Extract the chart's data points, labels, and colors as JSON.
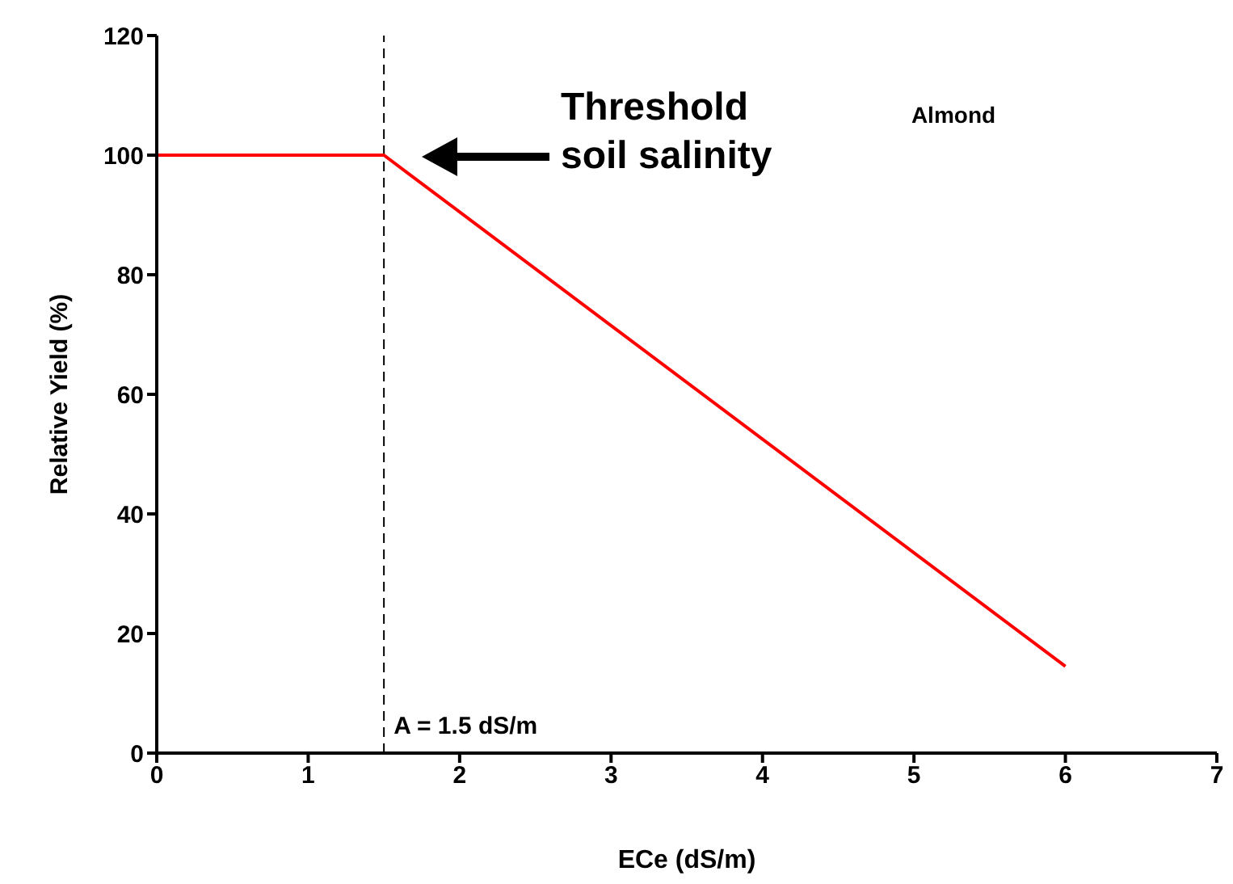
{
  "chart_data": {
    "type": "line",
    "xlabel": "ECe (dS/m)",
    "ylabel": "Relative Yield (%)",
    "x": [
      0,
      1.5,
      6
    ],
    "series": [
      {
        "color": "#ff0000",
        "values": [
          100,
          100,
          14.5
        ]
      }
    ],
    "xlim": [
      0,
      7
    ],
    "xticks": [
      0,
      1,
      2,
      3,
      4,
      5,
      6,
      7
    ],
    "ylim": [
      0,
      120
    ],
    "yticks": [
      0,
      20,
      40,
      60,
      80,
      100,
      120
    ],
    "grid": false,
    "marker": "none",
    "line_style": "solid",
    "ref_lines": [
      {
        "axis": "x",
        "value": 1.5,
        "label": "A = 1.5 dS/m",
        "color": "#000000",
        "line_style": "dashed"
      }
    ],
    "annotations": [
      "Threshold soil salinity",
      "Almond"
    ]
  }
}
